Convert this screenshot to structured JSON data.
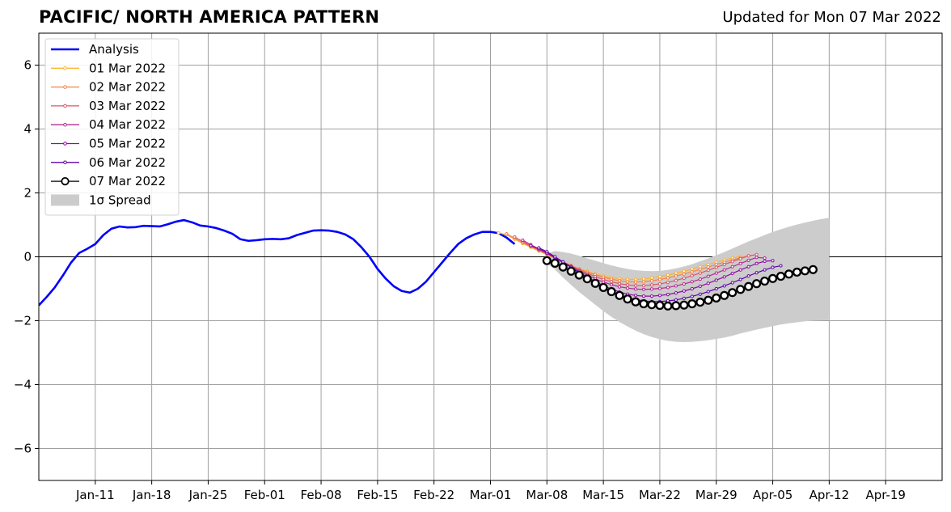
{
  "header": {
    "title": "PACIFIC/ NORTH AMERICA PATTERN",
    "subtitle": "Updated for Mon 07 Mar 2022"
  },
  "chart_data": {
    "type": "line",
    "title": "PACIFIC/ NORTH AMERICA PATTERN",
    "subtitle": "Updated for Mon 07 Mar 2022",
    "x_axis": {
      "type": "date",
      "range": [
        "2022-01-04",
        "2022-04-26"
      ],
      "tick_dates": [
        "2022-01-11",
        "2022-01-18",
        "2022-01-25",
        "2022-02-01",
        "2022-02-08",
        "2022-02-15",
        "2022-02-22",
        "2022-03-01",
        "2022-03-08",
        "2022-03-15",
        "2022-03-22",
        "2022-03-29",
        "2022-04-05",
        "2022-04-12",
        "2022-04-19"
      ],
      "tick_labels": [
        "Jan-11",
        "Jan-18",
        "Jan-25",
        "Feb-01",
        "Feb-08",
        "Feb-15",
        "Feb-22",
        "Mar-01",
        "Mar-08",
        "Mar-15",
        "Mar-22",
        "Mar-29",
        "Apr-05",
        "Apr-12",
        "Apr-19"
      ]
    },
    "y_axis": {
      "range": [
        -7,
        7
      ],
      "ticks": [
        -6,
        -4,
        -2,
        0,
        2,
        4,
        6
      ],
      "tick_labels": [
        "−6",
        "−4",
        "−2",
        "0",
        "2",
        "4",
        "6"
      ]
    },
    "grid": true,
    "zero_line": true,
    "legend_position": "upper-left",
    "analysis": {
      "name": "Analysis",
      "color": "#0000ff",
      "start_date": "2022-01-04",
      "values": [
        -1.52,
        -1.25,
        -0.95,
        -0.58,
        -0.18,
        0.12,
        0.25,
        0.4,
        0.68,
        0.88,
        0.95,
        0.92,
        0.93,
        0.97,
        0.96,
        0.95,
        1.02,
        1.1,
        1.15,
        1.08,
        0.98,
        0.95,
        0.9,
        0.82,
        0.72,
        0.55,
        0.5,
        0.52,
        0.55,
        0.56,
        0.55,
        0.58,
        0.68,
        0.75,
        0.82,
        0.83,
        0.82,
        0.78,
        0.7,
        0.55,
        0.3,
        0.0,
        -0.38,
        -0.68,
        -0.92,
        -1.07,
        -1.12,
        -1.0,
        -0.78,
        -0.48,
        -0.18,
        0.12,
        0.4,
        0.58,
        0.7,
        0.78,
        0.78,
        0.74,
        0.6,
        0.4
      ]
    },
    "spread": {
      "name": "1σ Spread",
      "color": "#cccccc",
      "start_date": "2022-03-08",
      "upper": [
        0.1,
        0.18,
        0.15,
        0.1,
        0.03,
        -0.05,
        -0.12,
        -0.2,
        -0.27,
        -0.33,
        -0.38,
        -0.42,
        -0.44,
        -0.45,
        -0.44,
        -0.41,
        -0.36,
        -0.3,
        -0.23,
        -0.14,
        -0.05,
        0.05,
        0.15,
        0.26,
        0.37,
        0.48,
        0.58,
        0.68,
        0.78,
        0.86,
        0.94,
        1.01,
        1.07,
        1.13,
        1.18,
        1.22
      ],
      "lower": [
        -0.2,
        -0.4,
        -0.65,
        -0.88,
        -1.1,
        -1.3,
        -1.5,
        -1.7,
        -1.88,
        -2.04,
        -2.18,
        -2.31,
        -2.42,
        -2.51,
        -2.58,
        -2.63,
        -2.66,
        -2.67,
        -2.66,
        -2.64,
        -2.61,
        -2.57,
        -2.53,
        -2.47,
        -2.4,
        -2.34,
        -2.28,
        -2.22,
        -2.17,
        -2.12,
        -2.08,
        -2.05,
        -2.02,
        -2.0,
        -1.99,
        -1.98
      ]
    },
    "series": [
      {
        "name": "01 Mar 2022",
        "color": "#fdb42f",
        "start_date": "2022-03-02",
        "values": [
          0.75,
          0.69,
          0.55,
          0.42,
          0.3,
          0.18,
          0.06,
          -0.06,
          -0.17,
          -0.28,
          -0.37,
          -0.46,
          -0.54,
          -0.6,
          -0.65,
          -0.69,
          -0.71,
          -0.71,
          -0.69,
          -0.66,
          -0.62,
          -0.57,
          -0.51,
          -0.45,
          -0.38,
          -0.31,
          -0.24,
          -0.17,
          -0.1,
          -0.04,
          0.01
        ]
      },
      {
        "name": "02 Mar 2022",
        "color": "#f2844b",
        "start_date": "2022-03-03",
        "values": [
          0.72,
          0.58,
          0.44,
          0.32,
          0.2,
          0.08,
          -0.04,
          -0.16,
          -0.27,
          -0.38,
          -0.48,
          -0.56,
          -0.64,
          -0.7,
          -0.75,
          -0.78,
          -0.79,
          -0.78,
          -0.75,
          -0.71,
          -0.66,
          -0.6,
          -0.54,
          -0.47,
          -0.39,
          -0.32,
          -0.24,
          -0.17,
          -0.1,
          -0.03,
          0.03
        ]
      },
      {
        "name": "03 Mar 2022",
        "color": "#d8576b",
        "start_date": "2022-03-04",
        "values": [
          0.62,
          0.48,
          0.34,
          0.22,
          0.1,
          -0.03,
          -0.16,
          -0.29,
          -0.41,
          -0.52,
          -0.62,
          -0.71,
          -0.78,
          -0.84,
          -0.88,
          -0.9,
          -0.9,
          -0.88,
          -0.85,
          -0.8,
          -0.74,
          -0.67,
          -0.59,
          -0.51,
          -0.42,
          -0.33,
          -0.24,
          -0.15,
          -0.06,
          0.03,
          0.07
        ]
      },
      {
        "name": "04 Mar 2022",
        "color": "#b12a90",
        "start_date": "2022-03-05",
        "values": [
          0.52,
          0.38,
          0.25,
          0.12,
          -0.02,
          -0.16,
          -0.3,
          -0.44,
          -0.57,
          -0.69,
          -0.79,
          -0.87,
          -0.94,
          -0.98,
          -1.01,
          -1.02,
          -1.01,
          -0.99,
          -0.96,
          -0.91,
          -0.85,
          -0.78,
          -0.7,
          -0.61,
          -0.51,
          -0.41,
          -0.31,
          -0.21,
          -0.11,
          -0.02,
          -0.04
        ]
      },
      {
        "name": "05 Mar 2022",
        "color": "#8b0aa5",
        "start_date": "2022-03-06",
        "values": [
          0.35,
          0.25,
          0.12,
          -0.03,
          -0.18,
          -0.33,
          -0.48,
          -0.63,
          -0.77,
          -0.9,
          -1.01,
          -1.1,
          -1.17,
          -1.21,
          -1.23,
          -1.23,
          -1.21,
          -1.18,
          -1.13,
          -1.07,
          -1.0,
          -0.92,
          -0.83,
          -0.73,
          -0.63,
          -0.52,
          -0.41,
          -0.31,
          -0.21,
          -0.14,
          -0.12
        ]
      },
      {
        "name": "06 Mar 2022",
        "color": "#5c01a6",
        "start_date": "2022-03-07",
        "values": [
          0.28,
          0.16,
          0.0,
          -0.16,
          -0.33,
          -0.5,
          -0.66,
          -0.81,
          -0.95,
          -1.08,
          -1.19,
          -1.28,
          -1.34,
          -1.38,
          -1.4,
          -1.4,
          -1.38,
          -1.35,
          -1.3,
          -1.24,
          -1.17,
          -1.09,
          -1.0,
          -0.91,
          -0.81,
          -0.71,
          -0.6,
          -0.5,
          -0.41,
          -0.33,
          -0.28
        ]
      },
      {
        "name": "07 Mar 2022",
        "color": "#000000",
        "start_date": "2022-03-08",
        "values": [
          -0.12,
          -0.2,
          -0.32,
          -0.45,
          -0.57,
          -0.69,
          -0.83,
          -0.96,
          -1.09,
          -1.21,
          -1.32,
          -1.41,
          -1.47,
          -1.5,
          -1.52,
          -1.54,
          -1.53,
          -1.51,
          -1.47,
          -1.42,
          -1.36,
          -1.29,
          -1.21,
          -1.12,
          -1.02,
          -0.93,
          -0.84,
          -0.76,
          -0.68,
          -0.61,
          -0.54,
          -0.48,
          -0.44,
          -0.4
        ]
      }
    ]
  }
}
